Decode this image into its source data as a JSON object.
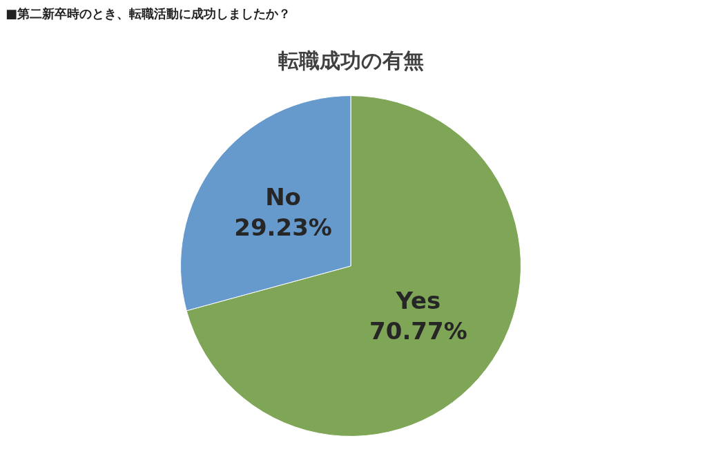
{
  "chart_data": {
    "type": "pie",
    "subtitle": "■第二新卒時のとき、転職活動に成功しましたか？",
    "title": "転職成功の有無",
    "categories": [
      "Yes",
      "No"
    ],
    "values": [
      70.77,
      29.23
    ],
    "colors": [
      "#7ea656",
      "#6699cc"
    ],
    "value_labels": [
      "70.77%",
      "29.23%"
    ],
    "legend": false
  }
}
